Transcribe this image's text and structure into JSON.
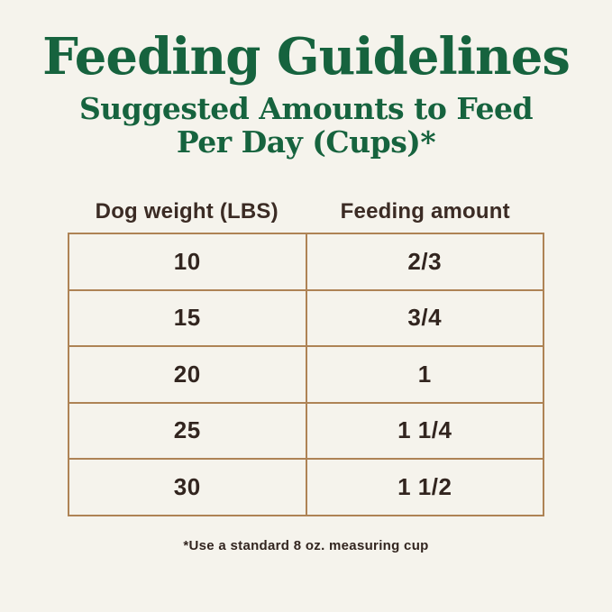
{
  "page": {
    "title": "Feeding Guidelines",
    "subtitle_line1": "Suggested Amounts to Feed",
    "subtitle_line2": "Per Day (Cups)*",
    "footnote": "*Use a standard 8 oz. measuring cup"
  },
  "colors": {
    "background_cream": "#f5f3ec",
    "title_green": "#16633e",
    "table_border_tan": "#ae8355",
    "text_dark_brown": "#32251f"
  },
  "chart_data": {
    "type": "table",
    "title": "Feeding Guidelines",
    "subtitle": "Suggested Amounts to Feed Per Day (Cups)*",
    "columns": [
      "Dog weight (LBS)",
      "Feeding amount"
    ],
    "rows": [
      [
        "10",
        "2/3"
      ],
      [
        "15",
        "3/4"
      ],
      [
        "20",
        "1"
      ],
      [
        "25",
        "1 1/4"
      ],
      [
        "30",
        "1 1/2"
      ]
    ],
    "footnote": "*Use a standard 8 oz. measuring cup",
    "layout_hints": {
      "columns_count": 2,
      "rows_count": 5,
      "grid": "full borders",
      "alignment": "center"
    }
  }
}
